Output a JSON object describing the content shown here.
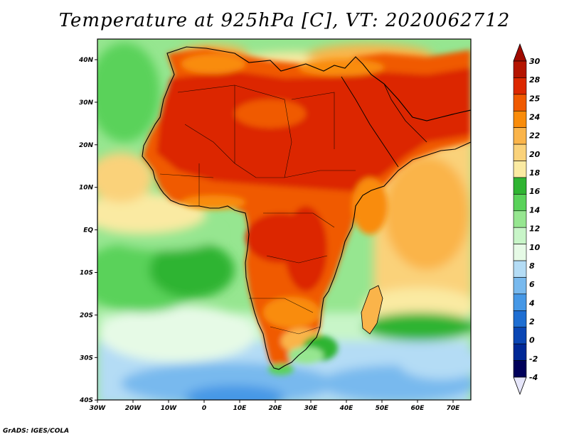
{
  "title": "Temperature at 925hPa [C], VT: 2020062712",
  "credit": "GrADS: IGES/COLA",
  "map": {
    "region": "Africa",
    "projection": "lat-lon",
    "lon_ticks": [
      "30W",
      "20W",
      "10W",
      "0",
      "10E",
      "20E",
      "30E",
      "40E",
      "50E",
      "60E",
      "70E"
    ],
    "lat_ticks": [
      "40N",
      "30N",
      "20N",
      "10N",
      "EQ",
      "10S",
      "20S",
      "30S",
      "40S"
    ]
  },
  "colorbar": {
    "labels": [
      "30",
      "28",
      "25",
      "24",
      "22",
      "20",
      "18",
      "16",
      "14",
      "12",
      "10",
      "8",
      "6",
      "4",
      "2",
      "0",
      "-2",
      "-4"
    ],
    "colors": [
      "#b41400",
      "#dc2800",
      "#f05a00",
      "#f98c0a",
      "#fab44a",
      "#fad27a",
      "#faeaa2",
      "#2fb432",
      "#5ad25a",
      "#96e690",
      "#c8f5c8",
      "#e6fae6",
      "#b4dcf5",
      "#78b9ee",
      "#4698e6",
      "#1e6ed2",
      "#0a46b4",
      "#002896",
      "#00005a"
    ],
    "top_arrow_color": "#a00a00",
    "bottom_arrow_color": "#e6e6fa"
  }
}
